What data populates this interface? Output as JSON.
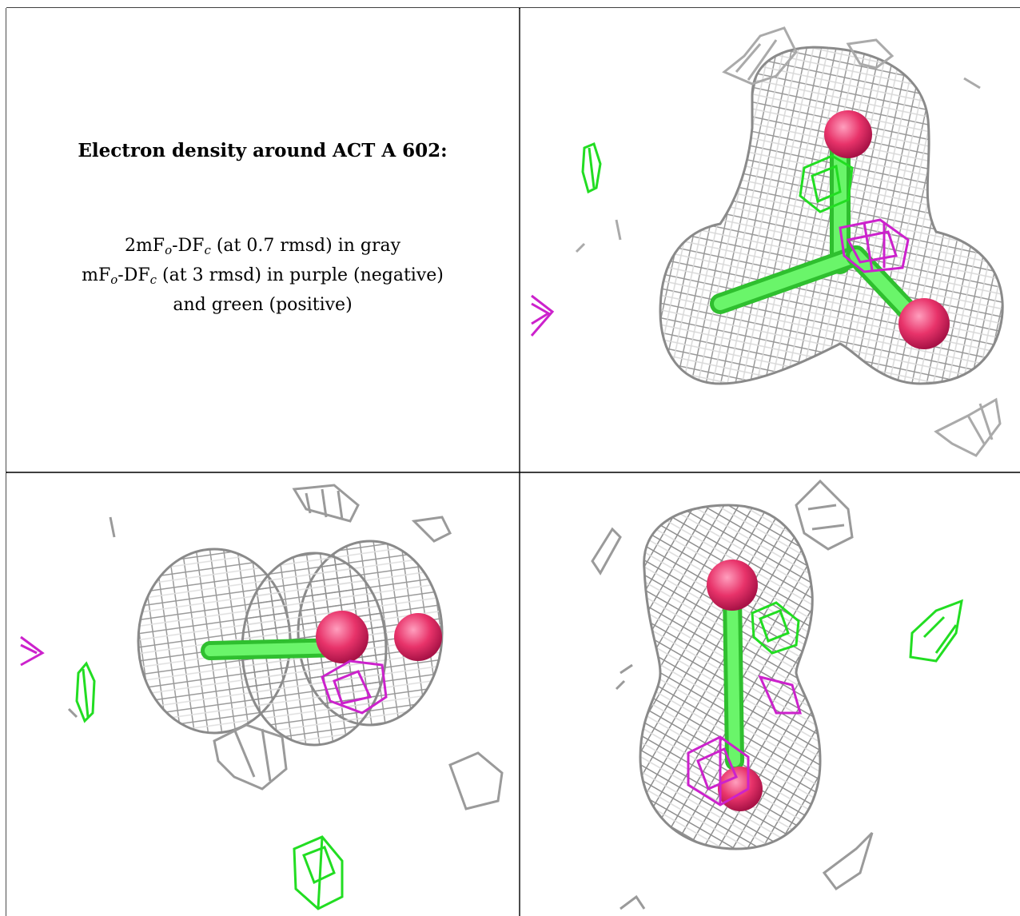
{
  "legend": {
    "title": "Electron density around ACT A 602:",
    "line1_prefix": "2mF",
    "line1_sub1": "o",
    "line1_mid": "-DF",
    "line1_sub2": "c",
    "line1_suffix": " (at 0.7 rmsd) in gray",
    "line2_prefix": "mF",
    "line2_sub1": "o",
    "line2_mid": "-DF",
    "line2_sub2": "c",
    "line2_suffix": " (at 3 rmsd) in purple (negative)",
    "line3": "and green (positive)"
  },
  "colors": {
    "grid_line": "#000000",
    "mesh_gray": "#9a9a9a",
    "mesh_gray_light": "#c8c8c8",
    "mesh_negative": "#cc22cc",
    "mesh_positive": "#22dd22",
    "atom_oxygen": "#e8336a",
    "bond_carbon": "#44ee44"
  },
  "views": [
    {
      "name": "view-top-right"
    },
    {
      "name": "view-bottom-left"
    },
    {
      "name": "view-bottom-right"
    }
  ]
}
